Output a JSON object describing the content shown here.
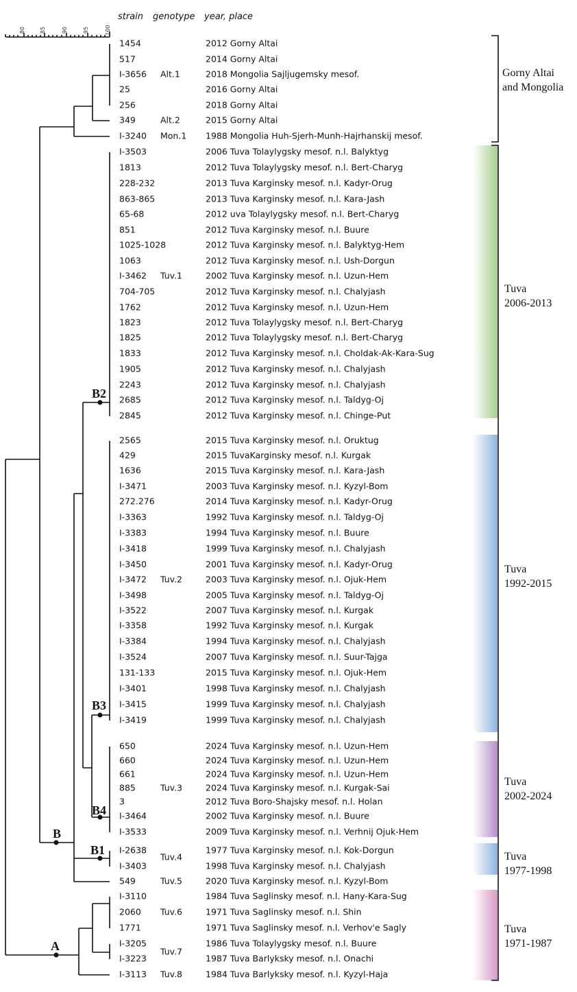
{
  "header": {
    "strain": "strain",
    "genotype": "genotype",
    "place": "year, place"
  },
  "scale": [
    "80",
    "85",
    "90",
    "95",
    "100"
  ],
  "rows": [
    {
      "strain": "1454",
      "place": "2012 Gorny Altai"
    },
    {
      "strain": "517",
      "place": "2014 Gorny Altai"
    },
    {
      "strain": "I-3656",
      "place": "2018 Mongolia Sajljugemsky mesof."
    },
    {
      "strain": "25",
      "place": "2016 Gorny Altai"
    },
    {
      "strain": "256",
      "place": "2018 Gorny Altai"
    },
    {
      "strain": "349",
      "place": "2015 Gorny Altai"
    },
    {
      "strain": "I-3240",
      "place": "1988 Mongolia Huh-Sjerh-Munh-Hajrhanskij mesof."
    },
    {
      "strain": "I-3503",
      "place": "2006 Tuva Tolaylygsky mesof. n.l. Balyktyg"
    },
    {
      "strain": "1813",
      "place": "2012 Tuva Tolaylygsky mesof. n.l. Bert-Charyg"
    },
    {
      "strain": "228-232",
      "place": "2013 Tuva Karginsky mesof. n.l. Kadyr-Orug"
    },
    {
      "strain": "863-865",
      "place": "2013 Tuva Karginsky mesof. n.l. Kara-Jash"
    },
    {
      "strain": "65-68",
      "place": "2012 uva Tolaylygsky mesof. n.l. Bert-Charyg"
    },
    {
      "strain": "851",
      "place": "2012 Tuva Karginsky mesof. n.l. Buure"
    },
    {
      "strain": "1025-1028",
      "place": "2012 Tuva Karginsky mesof. n.l. Balyktyg-Hem"
    },
    {
      "strain": "1063",
      "place": "2012 Tuva Karginsky mesof. n.l. Ush-Dorgun"
    },
    {
      "strain": "I-3462",
      "place": "2002 Tuva Karginsky mesof. n.l. Uzun-Hem"
    },
    {
      "strain": "704-705",
      "place": "2012 Tuva Karginsky mesof. n.l. Chalyjash"
    },
    {
      "strain": "1762",
      "place": "2012 Tuva Karginsky mesof. n.l. Uzun-Hem"
    },
    {
      "strain": "1823",
      "place": "2012 Tuva Tolaylygsky mesof. n.l. Bert-Charyg"
    },
    {
      "strain": "1825",
      "place": "2012 Tuva Tolaylygsky mesof. n.l. Bert-Charyg"
    },
    {
      "strain": "1833",
      "place": "2012 Tuva Karginsky mesof. n.l. Choldak-Ak-Kara-Sug"
    },
    {
      "strain": "1905",
      "place": "2012 Tuva Karginsky mesof. n.l. Chalyjash"
    },
    {
      "strain": "2243",
      "place": "2012 Tuva Karginsky mesof. n.l. Chalyjash"
    },
    {
      "strain": "2685",
      "place": "2012 Tuva Karginsky mesof. n.l. Taldyg-Oj"
    },
    {
      "strain": "2845",
      "place": "2012 Tuva Karginsky mesof. n.l. Chinge-Put"
    },
    {
      "strain": "2565",
      "place": "2015 Tuva Karginsky mesof. n.l. Oruktug"
    },
    {
      "strain": "429",
      "place": "2015 TuvaKarginsky mesof. n.l. Kurgak"
    },
    {
      "strain": "1636",
      "place": "2015 Tuva Karginsky mesof. n.l. Kara-Jash"
    },
    {
      "strain": "I-3471",
      "place": "2003 Tuva Karginsky mesof. n.l. Kyzyl-Bom"
    },
    {
      "strain": "272.276",
      "place": "2014 Tuva Karginsky mesof. n.l. Kadyr-Orug"
    },
    {
      "strain": "I-3363",
      "place": "1992 Tuva Karginsky mesof. n.l. Taldyg-Oj"
    },
    {
      "strain": "I-3383",
      "place": "1994 Tuva Karginsky mesof. n.l. Buure"
    },
    {
      "strain": "I-3418",
      "place": "1999 Tuva Karginsky mesof. n.l. Chalyjash"
    },
    {
      "strain": "I-3450",
      "place": "2001 Tuva Karginsky mesof. n.l. Kadyr-Orug"
    },
    {
      "strain": "I-3472",
      "place": "2003 Tuva Karginsky mesof. n.l. Ojuk-Hem"
    },
    {
      "strain": "I-3498",
      "place": "2005 Tuva Karginsky mesof. n.l. Taldyg-Oj"
    },
    {
      "strain": "I-3522",
      "place": "2007 Tuva Karginsky mesof. n.l. Kurgak"
    },
    {
      "strain": "I-3358",
      "place": "1992 Tuva Karginsky mesof. n.l. Kurgak"
    },
    {
      "strain": "I-3384",
      "place": "1994 Tuva Karginsky mesof. n.l. Chalyjash"
    },
    {
      "strain": "I-3524",
      "place": "2007 Tuva Karginsky mesof. n.l. Suur-Tajga"
    },
    {
      "strain": "131-133",
      "place": "2015 Tuva Karginsky mesof. n.l. Ojuk-Hem"
    },
    {
      "strain": "I-3401",
      "place": "1998 Tuva Karginsky mesof. n.l. Chalyjash"
    },
    {
      "strain": "I-3415",
      "place": "1999 Tuva Karginsky mesof. n.l. Chalyjash"
    },
    {
      "strain": "I-3419",
      "place": "1999 Tuva Karginsky mesof. n.l. Chalyjash"
    },
    {
      "strain": "650",
      "place": "2024 Tuva Karginsky mesof. n.l. Uzun-Hem"
    },
    {
      "strain": "660",
      "place": "2024 Tuva Karginsky mesof. n.l. Uzun-Hem"
    },
    {
      "strain": "661",
      "place": "2024 Tuva Karginsky mesof. n.l. Uzun-Hem"
    },
    {
      "strain": "885",
      "place": "2024 Tuva Karginsky mesof. n.l. Kurgak-Sai"
    },
    {
      "strain": "3",
      "place": "2012 Tuva Boro-Shajsky mesof. n.l. Holan"
    },
    {
      "strain": "I-3464",
      "place": "2002 Tuva Karginsky mesof. n.l. Buure"
    },
    {
      "strain": "I-3533",
      "place": "2009 Tuva Karginsky mesof. n.l. Verhnij Ojuk-Hem"
    },
    {
      "strain": "I-2638",
      "place": "1977 Tuva Karginsky mesof. n.l. Kok-Dorgun"
    },
    {
      "strain": "I-3403",
      "place": "1998 Tuva Karginsky mesof. n.l. Chalyjash"
    },
    {
      "strain": "549",
      "place": "2020 Tuva Karginsky mesof. n.l. Kyzyl-Bom"
    },
    {
      "strain": "I-3110",
      "place": "1984 Tuva Saglinsky mesof. n.l. Hany-Kara-Sug"
    },
    {
      "strain": "2060",
      "place": "1971 Tuva Saglinsky mesof. n.l. Shin"
    },
    {
      "strain": "1771",
      "place": "1971 Tuva Saglinsky mesof. n.l. Verhov'e Sagly"
    },
    {
      "strain": "I-3205",
      "place": "1986 Tuva Tolaylygsky mesof. n.l. Buure"
    },
    {
      "strain": "I-3223",
      "place": "1987 Tuva Barlyksky mesof. n.l. Onachi"
    },
    {
      "strain": "I-3113",
      "place": "1984 Tuva Barlyksky mesof. n.l. Kyzyl-Haja"
    }
  ],
  "genotypes": [
    "Alt.1",
    "Alt.2",
    "Mon.1",
    "Tuv.1",
    "Tuv.2",
    "Tuv.3",
    "Tuv.4",
    "Tuv.5",
    "Tuv.6",
    "Tuv.7",
    "Tuv.8"
  ],
  "clades": [
    "A",
    "B",
    "B1",
    "B2",
    "B3",
    "B4"
  ],
  "groups": [
    [
      "Gorny Altai",
      "and Mongolia"
    ],
    [
      "Tuva",
      "2006-2013"
    ],
    [
      "Tuva",
      "1992-2015"
    ],
    [
      "Tuva",
      "2002-2024"
    ],
    [
      "Tuva",
      "1977-1998"
    ],
    [
      "Tuva",
      "1971-1987"
    ]
  ]
}
